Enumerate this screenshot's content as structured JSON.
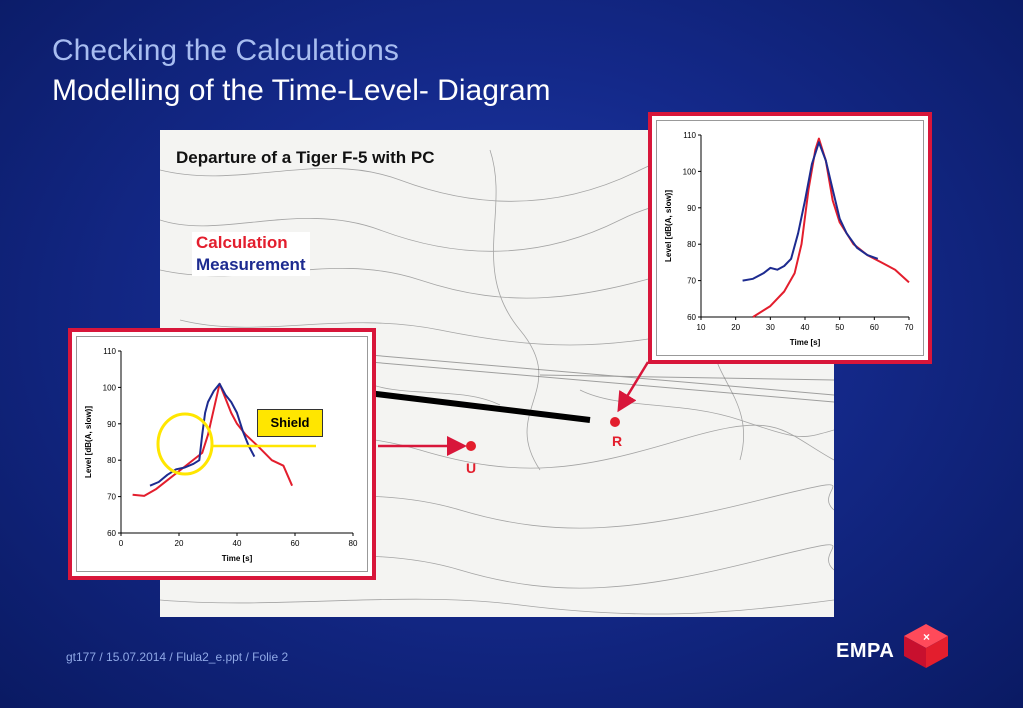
{
  "slide": {
    "title": "Checking the Calculations",
    "subtitle": "Modelling of the Time-Level- Diagram",
    "footer": "gt177 / 15.07.2014 / Flula2_e.ppt / Folie 2",
    "logo": "EMPA",
    "accent_color": "#d8163a",
    "calc_color": "#e31e2d",
    "meas_color": "#1d2b90"
  },
  "map": {
    "caption": "Departure of a Tiger F-5 with PC",
    "legend_calculation": "Calculation",
    "legend_measurement": "Measurement",
    "point_r_label": "R",
    "point_u_label": "U",
    "shield_label": "Shield"
  },
  "chart_data": [
    {
      "type": "line",
      "id": "receiver-U",
      "xlabel": "Time [s]",
      "ylabel": "Level [dB(A, slow)]",
      "xlim": [
        0,
        80
      ],
      "ylim": [
        60,
        110
      ],
      "xticks": [
        0,
        20,
        40,
        60,
        80
      ],
      "yticks": [
        60,
        70,
        80,
        90,
        100,
        110
      ],
      "series": [
        {
          "color": "#e31e2d",
          "x": [
            4,
            8,
            12,
            16,
            20,
            24,
            28,
            30,
            32,
            34,
            36,
            38,
            40,
            43,
            47,
            52,
            56,
            59
          ],
          "y": [
            70.5,
            70.2,
            72,
            74.5,
            77,
            79.5,
            82,
            87,
            94,
            101,
            97,
            93,
            90,
            87,
            84,
            80,
            78.5,
            73
          ]
        },
        {
          "color": "#1d2b90",
          "x": [
            10,
            13,
            16,
            19,
            22,
            25,
            27,
            28,
            29,
            30,
            32,
            34,
            36,
            38,
            40,
            42,
            44,
            46
          ],
          "y": [
            73,
            74,
            76,
            77.5,
            78,
            79,
            80,
            87,
            93,
            96,
            99,
            101,
            98,
            96,
            93,
            88,
            84,
            81
          ]
        }
      ]
    },
    {
      "type": "line",
      "id": "receiver-R",
      "xlabel": "Time [s]",
      "ylabel": "Level [dB(A, slow)]",
      "xlim": [
        10,
        70
      ],
      "ylim": [
        60,
        110
      ],
      "xticks": [
        10,
        20,
        30,
        40,
        50,
        60,
        70
      ],
      "yticks": [
        60,
        70,
        80,
        90,
        100,
        110
      ],
      "series": [
        {
          "color": "#e31e2d",
          "x": [
            25,
            30,
            34,
            37,
            39,
            41,
            43,
            44,
            46,
            48,
            50,
            54,
            58,
            62,
            66,
            70
          ],
          "y": [
            60,
            63,
            67,
            72,
            80,
            95,
            106,
            109,
            103,
            92,
            86,
            80,
            77,
            75,
            73,
            69.5
          ]
        },
        {
          "color": "#1d2b90",
          "x": [
            22,
            25,
            28,
            30,
            32,
            34,
            36,
            38,
            40,
            42,
            44,
            46,
            48,
            50,
            52,
            55,
            58,
            61
          ],
          "y": [
            70,
            70.5,
            72,
            73.5,
            73,
            74,
            76,
            83,
            92,
            102,
            108,
            103,
            95,
            87,
            83,
            79,
            77,
            76
          ]
        }
      ]
    }
  ]
}
